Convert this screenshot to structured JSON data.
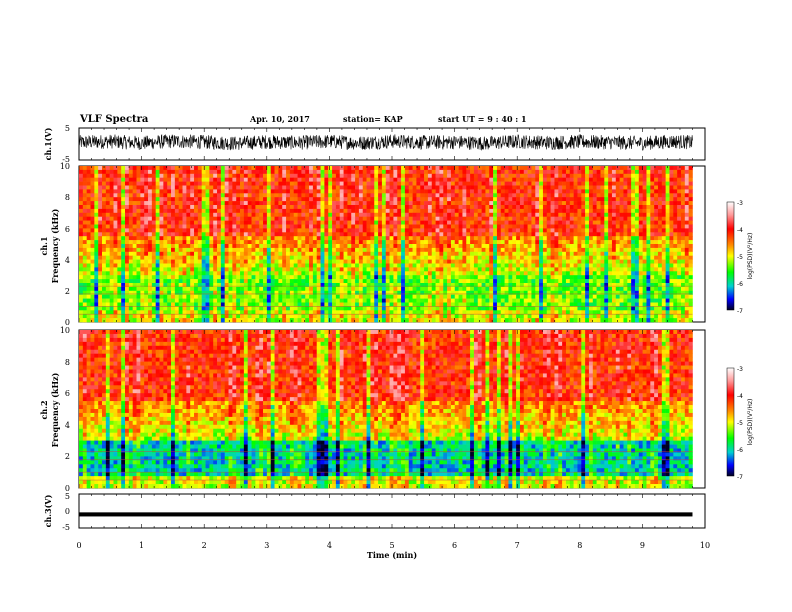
{
  "header": {
    "title": "VLF Spectra",
    "date": "Apr. 10, 2017",
    "station": "station= KAP",
    "start": "start UT =  9 : 40 : 1"
  },
  "chart_data": [
    {
      "type": "line",
      "ylabel": "ch.1(V)",
      "ylim": [
        -5,
        5
      ],
      "yticks": [
        "5",
        "-5"
      ],
      "x": [
        0.0,
        0.5,
        1.0,
        1.5,
        2.0,
        2.5,
        3.0,
        3.5,
        4.0,
        4.5,
        5.0,
        5.5,
        6.0,
        6.5,
        7.0,
        7.5,
        8.0,
        8.5,
        9.0,
        9.5,
        9.8
      ],
      "values": [
        0.5,
        0.8,
        0.3,
        0.9,
        0.6,
        0.2,
        0.7,
        0.4,
        0.8,
        0.3,
        0.9,
        0.5,
        0.6,
        0.2,
        0.8,
        0.4,
        0.7,
        0.5,
        0.3,
        0.8,
        0.5
      ],
      "band": 4.5
    },
    {
      "type": "heatmap",
      "ylabel": "ch.1",
      "ylabel2": "Frequency (kHz)",
      "ylim": [
        0,
        10
      ],
      "yticks": [
        "0",
        "2",
        "4",
        "6",
        "8",
        "10"
      ],
      "xlim": [
        0,
        9.8
      ],
      "zlim": [
        -7,
        -3
      ],
      "colorbar": {
        "ticks": [
          "-3",
          "-4",
          "-5",
          "-6",
          "-7"
        ],
        "label": "log(PSD)(V²/Hz)"
      }
    },
    {
      "type": "heatmap",
      "ylabel": "ch.2",
      "ylabel2": "Frequency (kHz)",
      "ylim": [
        0,
        10
      ],
      "yticks": [
        "0",
        "2",
        "4",
        "6",
        "8",
        "10"
      ],
      "xlim": [
        0,
        9.8
      ],
      "zlim": [
        -7,
        -3
      ],
      "colorbar": {
        "ticks": [
          "-3",
          "-4",
          "-5",
          "-6",
          "-7"
        ],
        "label": "log(PSD)(V²/Hz)"
      }
    },
    {
      "type": "line",
      "ylabel": "ch.3(V)",
      "ylim": [
        -5,
        5
      ],
      "yticks": [
        "5",
        "0",
        "-5"
      ],
      "x": [
        0,
        9.8
      ],
      "values": [
        -1,
        -1
      ],
      "band": 0.6
    }
  ],
  "xaxis": {
    "label": "Time (min)",
    "xlim": [
      0,
      10
    ],
    "ticks": [
      "0",
      "1",
      "2",
      "3",
      "4",
      "5",
      "6",
      "7",
      "8",
      "9",
      "10"
    ]
  }
}
